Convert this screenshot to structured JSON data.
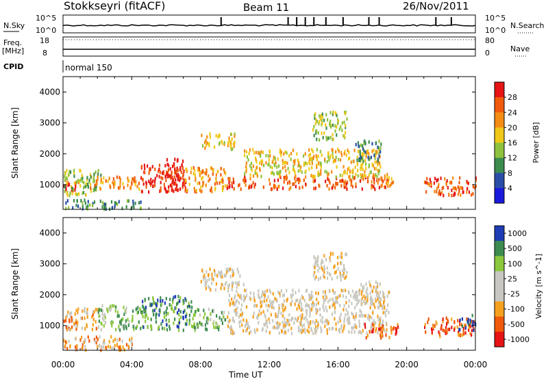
{
  "header": {
    "station": "Stokkseyri (fitACF)",
    "beam": "Beam 11",
    "date": "26/Nov/2011"
  },
  "strip_labels": {
    "nsky": "N.Sky",
    "nsearch": "N.Search",
    "freq": "Freq.",
    "freq_unit": "[MHz]",
    "nave": "Nave",
    "cpid": "CPID",
    "cpid_value": "normal 150",
    "nsky_top": "10^5",
    "nsky_bottom": "10^0",
    "freq_top": "18",
    "freq_bottom": "8",
    "nave_top": "80",
    "nave_bottom": "0"
  },
  "colors": {
    "power": [
      "#1a1adc",
      "#2a4ea8",
      "#3c8c50",
      "#8fc23c",
      "#f0c818",
      "#f58c14",
      "#f05a0a",
      "#e61414"
    ],
    "velocity": [
      "#e61414",
      "#f05a0a",
      "#f5a01e",
      "#c8c8c0",
      "#c8c8c0",
      "#8cc83c",
      "#3c8c50",
      "#1e3cb4"
    ]
  },
  "chart_data": [
    {
      "type": "heatmap",
      "name": "power",
      "xlabel": "Time UT",
      "ylabel": "Slant Range [km]",
      "x_ticks": [
        "00:00",
        "04:00",
        "08:00",
        "12:00",
        "16:00",
        "20:00",
        "00:00"
      ],
      "xlim_hours": [
        0,
        24
      ],
      "ylim": [
        200,
        4500
      ],
      "y_ticks": [
        1000,
        2000,
        3000,
        4000
      ],
      "colorbar_label": "Power [dB]",
      "colorbar_ticks": [
        "28",
        "24",
        "20",
        "16",
        "12",
        "8",
        "4"
      ],
      "scatter_regions": [
        {
          "t": [
            0,
            1.0
          ],
          "r": [
            850,
            1250
          ],
          "level": 7
        },
        {
          "t": [
            0,
            2.2
          ],
          "r": [
            700,
            1550
          ],
          "level": 3
        },
        {
          "t": [
            1.5,
            4.5
          ],
          "r": [
            900,
            1300
          ],
          "level": 5
        },
        {
          "t": [
            4.5,
            7.2
          ],
          "r": [
            800,
            1700
          ],
          "level": 7
        },
        {
          "t": [
            6.0,
            7.0
          ],
          "r": [
            1000,
            1900
          ],
          "level": 7
        },
        {
          "t": [
            7.0,
            9.5
          ],
          "r": [
            800,
            1600
          ],
          "level": 5
        },
        {
          "t": [
            9.5,
            19.0
          ],
          "r": [
            900,
            1300
          ],
          "level": 6
        },
        {
          "t": [
            10.5,
            18.5
          ],
          "r": [
            1300,
            2200
          ],
          "level": 4
        },
        {
          "t": [
            8.0,
            10.0
          ],
          "r": [
            2200,
            2700
          ],
          "level": 4
        },
        {
          "t": [
            14.5,
            16.5
          ],
          "r": [
            2500,
            3400
          ],
          "level": 3
        },
        {
          "t": [
            17.0,
            18.5
          ],
          "r": [
            1800,
            2500
          ],
          "level": 2
        },
        {
          "t": [
            18.5,
            19.2
          ],
          "r": [
            1000,
            1400
          ],
          "level": 5
        },
        {
          "t": [
            21.0,
            24.0
          ],
          "r": [
            700,
            1300
          ],
          "level": 6
        },
        {
          "t": [
            0,
            4.5
          ],
          "r": [
            250,
            550
          ],
          "level": 2
        }
      ]
    },
    {
      "type": "heatmap",
      "name": "velocity",
      "xlabel": "Time UT",
      "ylabel": "Slant Range [km]",
      "x_ticks": [
        "00:00",
        "04:00",
        "08:00",
        "12:00",
        "16:00",
        "20:00",
        "00:00"
      ],
      "xlim_hours": [
        0,
        24
      ],
      "ylim": [
        200,
        4500
      ],
      "y_ticks": [
        1000,
        2000,
        3000,
        4000
      ],
      "colorbar_label": "Velocity [m s^-1]",
      "colorbar_ticks": [
        "1000",
        "500",
        "100",
        "25",
        "-25",
        "-100",
        "-500",
        "-1000"
      ],
      "scatter_regions": [
        {
          "t": [
            0,
            2.0
          ],
          "r": [
            900,
            1600
          ],
          "level": 2
        },
        {
          "t": [
            2.0,
            4.5
          ],
          "r": [
            900,
            1700
          ],
          "level": 5
        },
        {
          "t": [
            4.5,
            7.5
          ],
          "r": [
            900,
            2000
          ],
          "level": 6
        },
        {
          "t": [
            7.5,
            9.5
          ],
          "r": [
            900,
            1600
          ],
          "level": 5
        },
        {
          "t": [
            9.5,
            19.0
          ],
          "r": [
            800,
            2200
          ],
          "level": 3
        },
        {
          "t": [
            8.0,
            10.5
          ],
          "r": [
            2200,
            2900
          ],
          "level": 3
        },
        {
          "t": [
            14.5,
            16.5
          ],
          "r": [
            2500,
            3400
          ],
          "level": 3
        },
        {
          "t": [
            17.0,
            18.5
          ],
          "r": [
            1700,
            2500
          ],
          "level": 3
        },
        {
          "t": [
            17.5,
            19.5
          ],
          "r": [
            650,
            1100
          ],
          "level": 1
        },
        {
          "t": [
            21.0,
            24.0
          ],
          "r": [
            700,
            1300
          ],
          "level": 1
        },
        {
          "t": [
            23.0,
            24.0
          ],
          "r": [
            900,
            1400
          ],
          "level": 7
        },
        {
          "t": [
            0,
            4.0
          ],
          "r": [
            250,
            700
          ],
          "level": 2
        }
      ]
    }
  ]
}
